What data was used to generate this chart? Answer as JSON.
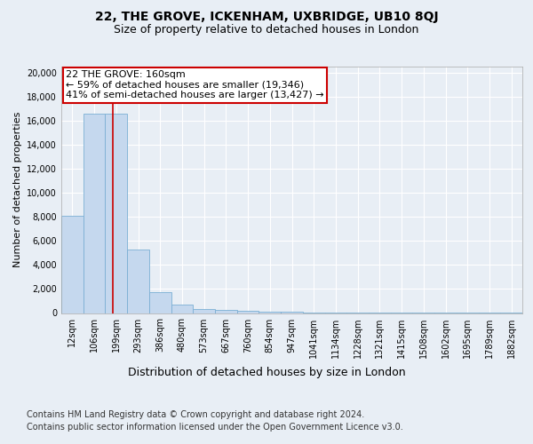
{
  "title1": "22, THE GROVE, ICKENHAM, UXBRIDGE, UB10 8QJ",
  "title2": "Size of property relative to detached houses in London",
  "xlabel": "Distribution of detached houses by size in London",
  "ylabel": "Number of detached properties",
  "categories": [
    "12sqm",
    "106sqm",
    "199sqm",
    "293sqm",
    "386sqm",
    "480sqm",
    "573sqm",
    "667sqm",
    "760sqm",
    "854sqm",
    "947sqm",
    "1041sqm",
    "1134sqm",
    "1228sqm",
    "1321sqm",
    "1415sqm",
    "1508sqm",
    "1602sqm",
    "1695sqm",
    "1789sqm",
    "1882sqm"
  ],
  "values": [
    8100,
    16600,
    16600,
    5300,
    1750,
    700,
    340,
    230,
    170,
    100,
    90,
    70,
    50,
    40,
    35,
    30,
    25,
    20,
    15,
    12,
    10
  ],
  "bar_color": "#c5d8ee",
  "bar_edge_color": "#7bafd4",
  "red_line_x": 1.85,
  "annotation_text_line1": "22 THE GROVE: 160sqm",
  "annotation_text_line2": "← 59% of detached houses are smaller (19,346)",
  "annotation_text_line3": "41% of semi-detached houses are larger (13,427) →",
  "annotation_box_color": "#ffffff",
  "annotation_box_edge": "#cc0000",
  "ylim": [
    0,
    20500
  ],
  "yticks": [
    0,
    2000,
    4000,
    6000,
    8000,
    10000,
    12000,
    14000,
    16000,
    18000,
    20000
  ],
  "footer1": "Contains HM Land Registry data © Crown copyright and database right 2024.",
  "footer2": "Contains public sector information licensed under the Open Government Licence v3.0.",
  "bg_color": "#e8eef5",
  "plot_bg_color": "#e8eef5",
  "grid_color": "#ffffff",
  "title_fontsize": 10,
  "subtitle_fontsize": 9,
  "ylabel_fontsize": 8,
  "xlabel_fontsize": 9,
  "tick_fontsize": 7,
  "footer_fontsize": 7,
  "annotation_fontsize": 8
}
